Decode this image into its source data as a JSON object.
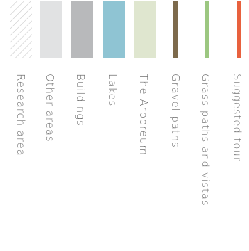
{
  "legend": {
    "items": [
      {
        "label": "Research area",
        "swatch_type": "hatch",
        "color": "#c9c9c9"
      },
      {
        "label": "Other areas",
        "swatch_type": "block",
        "color": "#e1e2e3"
      },
      {
        "label": "Buildings",
        "swatch_type": "block",
        "color": "#b8b9bb"
      },
      {
        "label": "Lakes",
        "swatch_type": "block",
        "color": "#8fc4d3"
      },
      {
        "label": "The Arboreum",
        "swatch_type": "block",
        "color": "#dfe6cf"
      },
      {
        "label": "Gravel paths",
        "swatch_type": "line",
        "color": "#7d6a4c"
      },
      {
        "label": "Grass paths and vistas",
        "swatch_type": "line",
        "color": "#9cc781"
      },
      {
        "label": "Suggested tour",
        "swatch_type": "line",
        "color": "#e8613e"
      }
    ]
  }
}
